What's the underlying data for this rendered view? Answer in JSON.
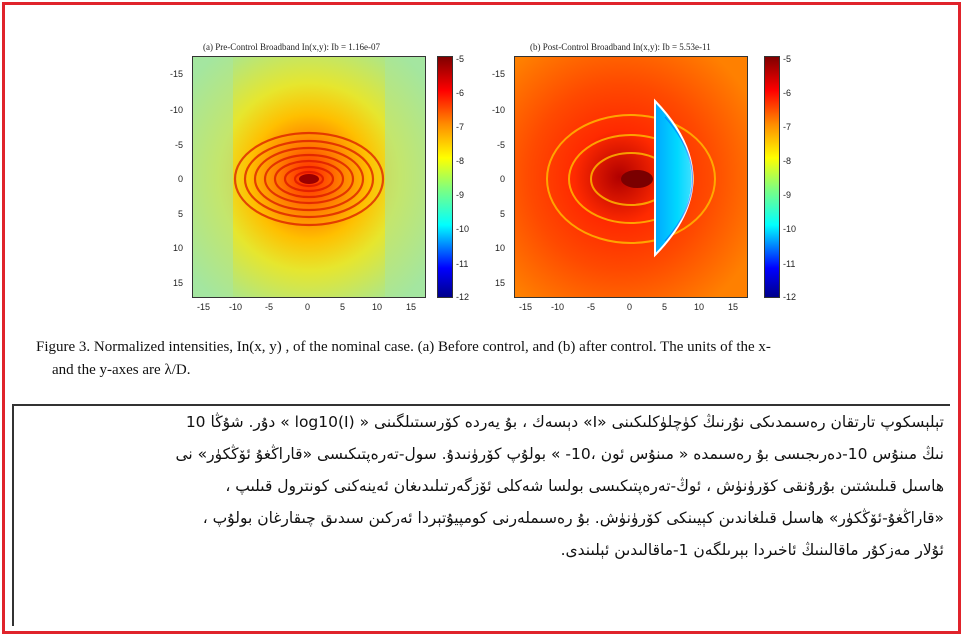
{
  "figure": {
    "panel_a_title": "(a) Pre-Control Broadband In(x,y): Ib = 1.16e-07",
    "panel_b_title": "(b) Post-Control Broadband In(x,y): Ib = 5.53e-11",
    "y_ticks": [
      "-15",
      "-10",
      "-5",
      "0",
      "5",
      "10",
      "15"
    ],
    "x_ticks": [
      "-15",
      "-10",
      "-5",
      "0",
      "5",
      "10",
      "15"
    ],
    "colorbar_ticks": [
      "-5",
      "-6",
      "-7",
      "-8",
      "-9",
      "-10",
      "-11",
      "-12"
    ],
    "colors": {
      "border": "#e0232b",
      "hot": "#b00000",
      "warm": "#ff3300",
      "mid": "#ffd000",
      "cool": "#00c8ff",
      "deep": "#0000c0"
    }
  },
  "caption": {
    "line1": "Figure 3. Normalized intensities,  In(x, y) , of the nominal case.  (a) Before control, and (b) after control.  The units of the x-",
    "line2": "and the y-axes are λ/D."
  },
  "uyghur_text": {
    "line1": "تېلېسكوپ تارتقان رەسىمدىكى نۇرنىڭ كۈچلۈكلىكىنى «I» دېسەك ، بۇ يەردە كۆرسىتىلگىنى « log10(I) » دۇر.  شۇڭا 10",
    "line2": "نىڭ مىنۇس 10-دەرىجىسى بۇ رەسىمدە « مىنۇس ئون ،10- » بولۇپ كۆرۈنىدۇ.  سول-تەرەپتىكىسى «قاراڭغۇ ئۆڭكۈر» نى",
    "line3": "ھاسىل قىلىشتىن بۇرۇنقى كۆرۈنۈش ، ئوڭ-تەرەپتىكىسى بولسا شەكلى ئۆزگەرتىلىدىغان ئەينەكنى كونترول قىلىپ ،",
    "line4": "«قاراڭغۇ-ئۆڭكۈر» ھاسىل قىلغاندىن كېيىنكى كۆرۈنۈش.  بۇ رەسىملەرنى كومپيۇتېردا ئەركىن سىدىق چىقارغان بولۇپ ،",
    "line5": "ئۇلار مەزكۇر ماقالىنىڭ ئاخىردا بېرىلگەن 1-ماقالىدىن ئېلىندى."
  }
}
